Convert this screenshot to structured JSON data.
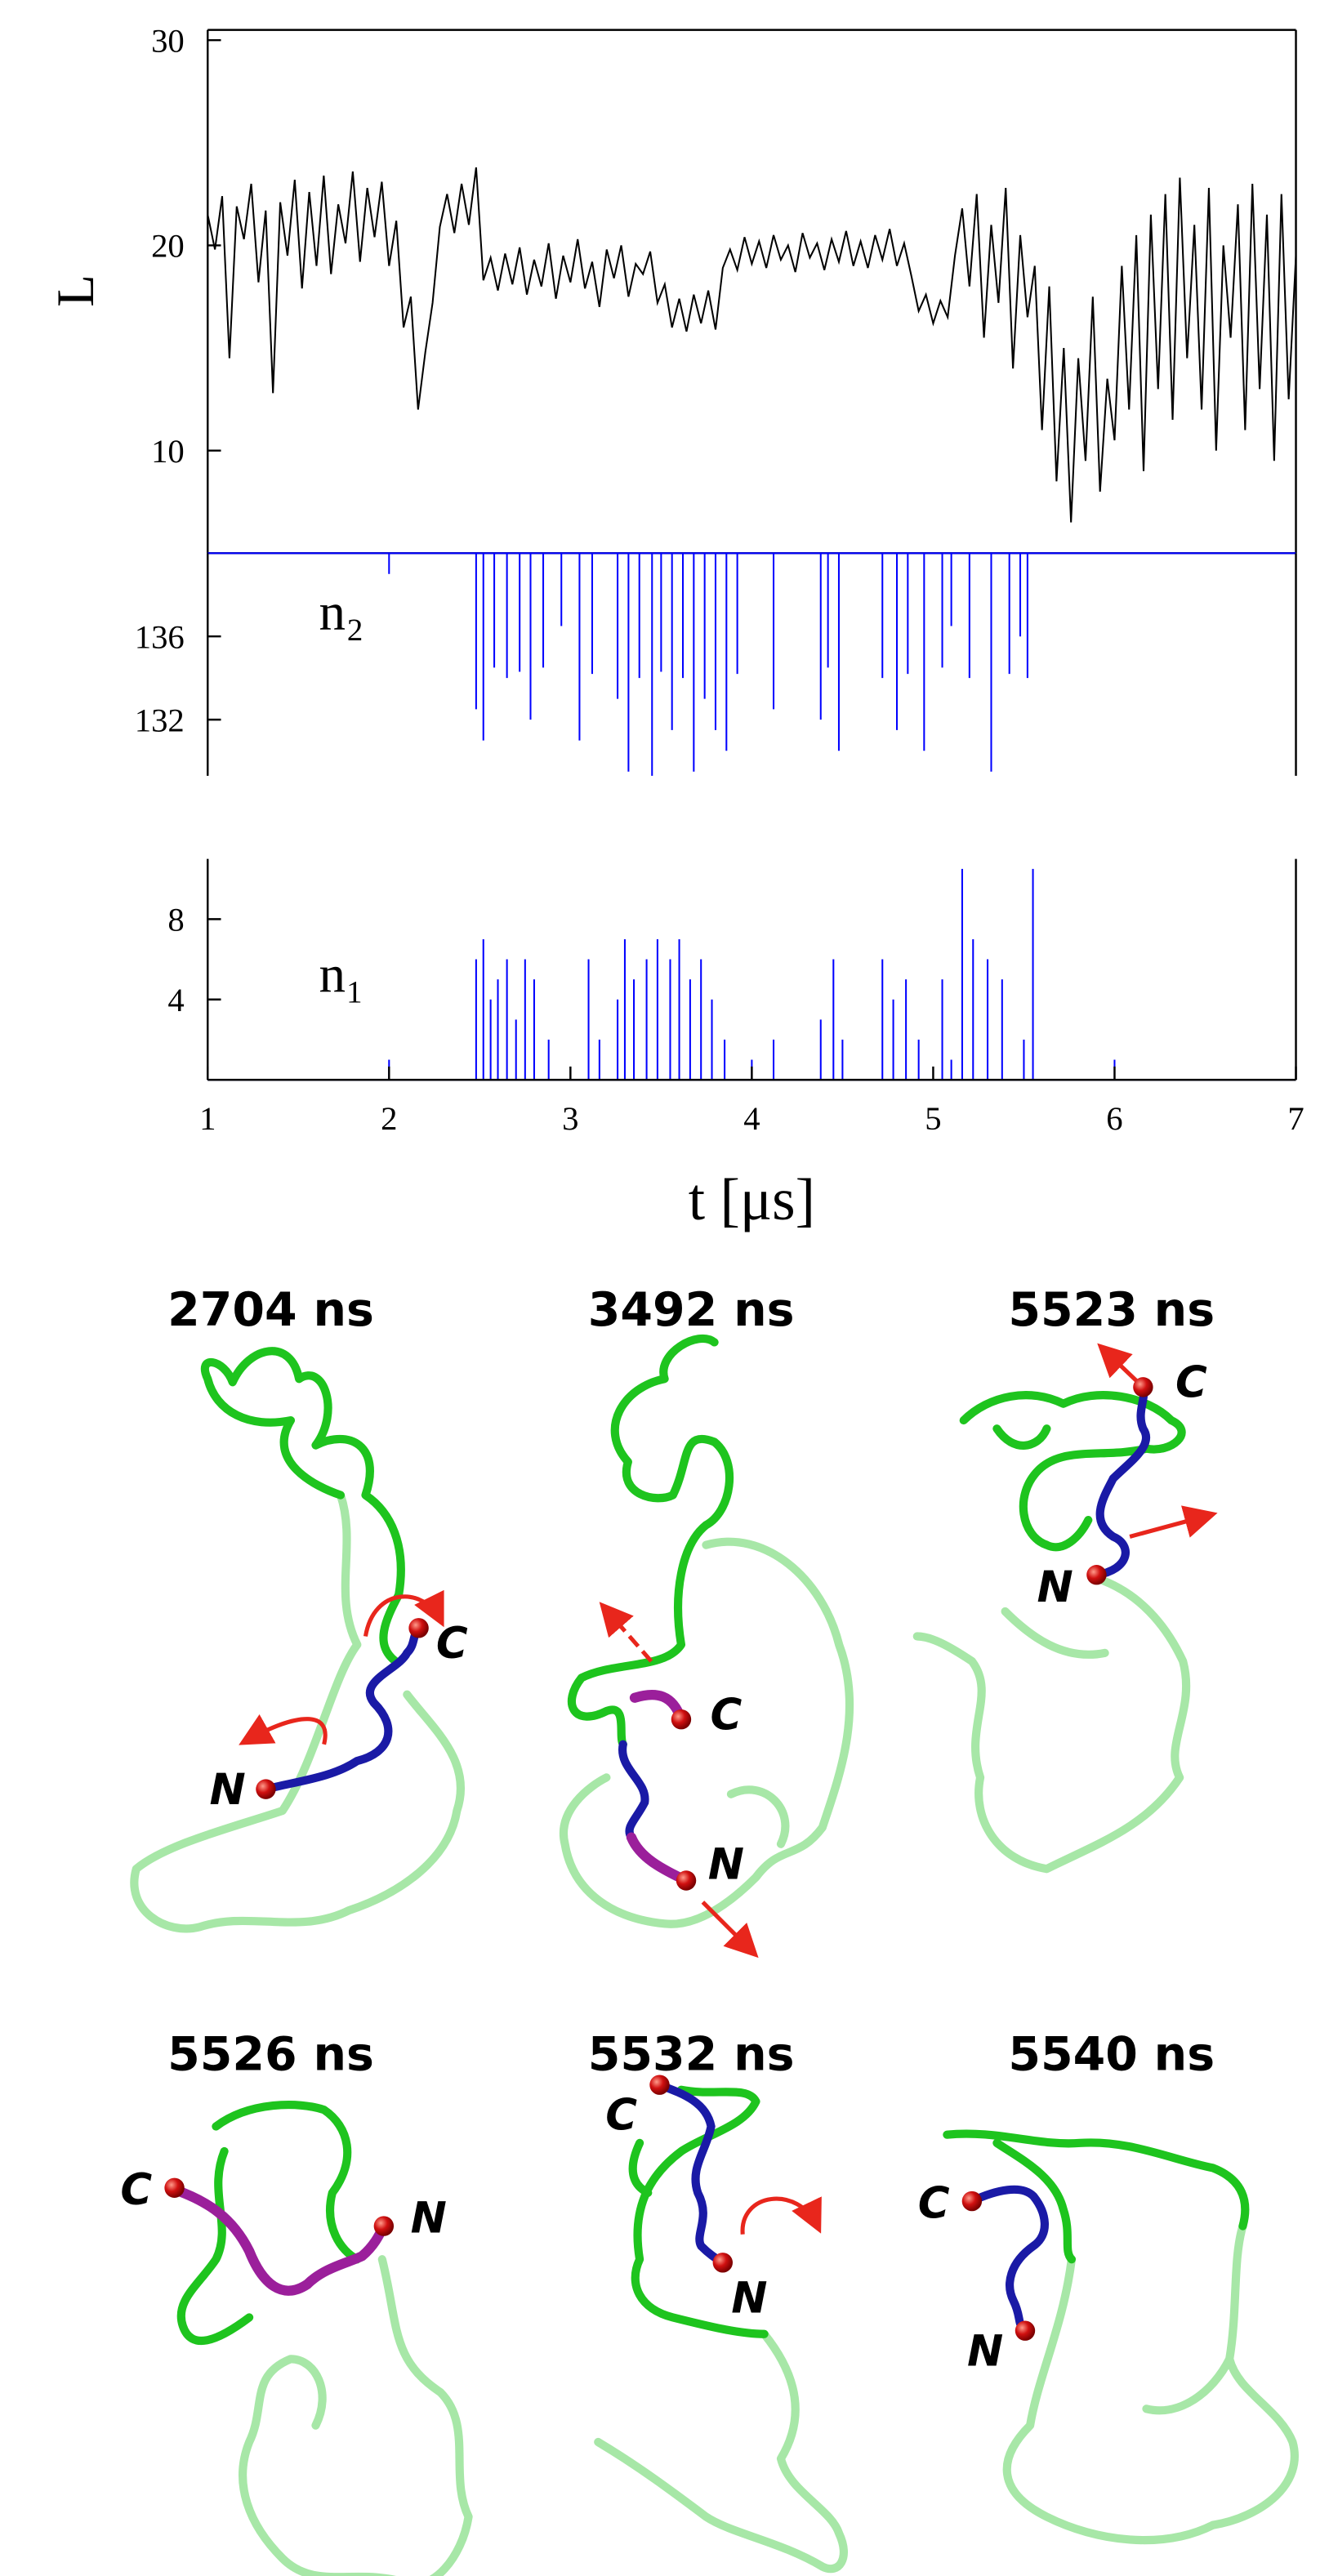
{
  "chart_data": [
    {
      "type": "line",
      "ylabel": "L",
      "color": "#000000",
      "x": [
        1,
        1.04,
        1.08,
        1.12,
        1.16,
        1.2,
        1.24,
        1.28,
        1.32,
        1.36,
        1.4,
        1.44,
        1.48,
        1.52,
        1.56,
        1.6,
        1.64,
        1.68,
        1.72,
        1.76,
        1.8,
        1.84,
        1.88,
        1.92,
        1.96,
        2,
        2.04,
        2.08,
        2.12,
        2.16,
        2.2,
        2.24,
        2.28,
        2.32,
        2.36,
        2.4,
        2.44,
        2.48,
        2.52,
        2.56,
        2.6,
        2.64,
        2.68,
        2.72,
        2.76,
        2.8,
        2.84,
        2.88,
        2.92,
        2.96,
        3,
        3.04,
        3.08,
        3.12,
        3.16,
        3.2,
        3.24,
        3.28,
        3.32,
        3.36,
        3.4,
        3.44,
        3.48,
        3.52,
        3.56,
        3.6,
        3.64,
        3.68,
        3.72,
        3.76,
        3.8,
        3.84,
        3.88,
        3.92,
        3.96,
        4,
        4.04,
        4.08,
        4.12,
        4.16,
        4.2,
        4.24,
        4.28,
        4.32,
        4.36,
        4.4,
        4.44,
        4.48,
        4.52,
        4.56,
        4.6,
        4.64,
        4.68,
        4.72,
        4.76,
        4.8,
        4.84,
        4.88,
        4.92,
        4.96,
        5,
        5.04,
        5.08,
        5.12,
        5.16,
        5.2,
        5.24,
        5.28,
        5.32,
        5.36,
        5.4,
        5.44,
        5.48,
        5.52,
        5.56,
        5.6,
        5.64,
        5.68,
        5.72,
        5.76,
        5.8,
        5.84,
        5.88,
        5.92,
        5.96,
        6,
        6.04,
        6.08,
        6.12,
        6.16,
        6.2,
        6.24,
        6.28,
        6.32,
        6.36,
        6.4,
        6.44,
        6.48,
        6.52,
        6.56,
        6.6,
        6.64,
        6.68,
        6.72,
        6.76,
        6.8,
        6.84,
        6.88,
        6.92,
        6.96,
        7
      ],
      "values": [
        21.5,
        19.8,
        22.4,
        14.5,
        21.9,
        20.3,
        23.0,
        18.2,
        21.7,
        12.8,
        22.1,
        19.5,
        23.2,
        17.9,
        22.6,
        19.0,
        23.4,
        18.6,
        22.0,
        20.1,
        23.6,
        19.2,
        22.8,
        20.4,
        23.1,
        19.0,
        21.2,
        16.0,
        17.5,
        12.0,
        14.8,
        17.2,
        20.9,
        22.5,
        20.6,
        23.0,
        21.0,
        23.8,
        18.3,
        19.4,
        17.8,
        19.6,
        18.1,
        19.9,
        17.6,
        19.3,
        18.0,
        20.1,
        17.4,
        19.5,
        18.2,
        20.3,
        17.9,
        19.2,
        17.0,
        19.8,
        18.4,
        20.0,
        17.5,
        19.1,
        18.6,
        19.7,
        17.2,
        18.1,
        16.0,
        17.4,
        15.8,
        17.6,
        16.2,
        17.8,
        15.9,
        18.9,
        19.8,
        18.8,
        20.4,
        19.1,
        20.2,
        18.9,
        20.5,
        19.3,
        20.0,
        18.7,
        20.6,
        19.4,
        20.1,
        18.8,
        20.3,
        19.2,
        20.7,
        19.0,
        20.2,
        18.9,
        20.5,
        19.3,
        20.8,
        19.0,
        20.1,
        18.5,
        16.8,
        17.6,
        16.2,
        17.3,
        16.5,
        19.5,
        21.8,
        18.0,
        22.5,
        15.5,
        21.0,
        17.2,
        22.8,
        14.0,
        20.5,
        16.5,
        19.0,
        11.0,
        18.0,
        8.5,
        15.0,
        6.5,
        14.5,
        9.5,
        17.5,
        8.0,
        13.5,
        10.5,
        19.0,
        12.0,
        20.5,
        9.0,
        21.5,
        13.0,
        22.5,
        11.5,
        23.3,
        14.5,
        21.0,
        12.0,
        22.8,
        10.0,
        20.0,
        15.5,
        22.0,
        11.0,
        23.0,
        13.0,
        21.5,
        9.5,
        22.5,
        12.5,
        19.5
      ],
      "xlim": [
        1,
        7
      ],
      "ylim": [
        5,
        30.5
      ],
      "yticks": [
        10,
        20,
        30
      ]
    },
    {
      "type": "line",
      "ylabel": "n₂",
      "color": "#0000ff",
      "x": [
        1,
        2,
        2,
        2,
        2.48,
        2.48,
        2.48,
        2.52,
        2.52,
        2.52,
        2.58,
        2.58,
        2.58,
        2.65,
        2.65,
        2.65,
        2.72,
        2.72,
        2.72,
        2.78,
        2.78,
        2.78,
        2.85,
        2.85,
        2.85,
        2.95,
        2.95,
        2.95,
        3.05,
        3.05,
        3.05,
        3.12,
        3.12,
        3.12,
        3.26,
        3.26,
        3.26,
        3.32,
        3.32,
        3.32,
        3.38,
        3.38,
        3.38,
        3.45,
        3.45,
        3.45,
        3.5,
        3.5,
        3.5,
        3.56,
        3.56,
        3.56,
        3.62,
        3.62,
        3.62,
        3.68,
        3.68,
        3.68,
        3.74,
        3.74,
        3.74,
        3.8,
        3.8,
        3.8,
        3.86,
        3.86,
        3.86,
        3.92,
        3.92,
        3.92,
        4.12,
        4.12,
        4.12,
        4.38,
        4.38,
        4.38,
        4.42,
        4.42,
        4.42,
        4.48,
        4.48,
        4.48,
        4.72,
        4.72,
        4.72,
        4.8,
        4.8,
        4.8,
        4.86,
        4.86,
        4.86,
        4.95,
        4.95,
        4.95,
        5.05,
        5.05,
        5.05,
        5.1,
        5.1,
        5.1,
        5.2,
        5.2,
        5.2,
        5.32,
        5.32,
        5.32,
        5.42,
        5.42,
        5.42,
        5.48,
        5.48,
        5.48,
        5.52,
        5.52,
        5.52,
        7
      ],
      "values": [
        140,
        140,
        139,
        140,
        140,
        132.5,
        140,
        140,
        131,
        140,
        140,
        134.5,
        140,
        140,
        134,
        140,
        140,
        134.3,
        140,
        140,
        132,
        140,
        140,
        134.5,
        140,
        140,
        136.5,
        140,
        140,
        131,
        140,
        140,
        134.2,
        140,
        140,
        133,
        140,
        140,
        129.5,
        140,
        140,
        134,
        140,
        140,
        129.3,
        140,
        140,
        134.3,
        140,
        140,
        131.5,
        140,
        140,
        134,
        140,
        140,
        129.5,
        140,
        140,
        133,
        140,
        140,
        131.5,
        140,
        140,
        130.5,
        140,
        140,
        134.2,
        140,
        140,
        132.5,
        140,
        140,
        132,
        140,
        140,
        134.5,
        140,
        140,
        130.5,
        140,
        140,
        134,
        140,
        140,
        131.5,
        140,
        140,
        134.2,
        140,
        140,
        130.5,
        140,
        140,
        134.5,
        140,
        140,
        136.5,
        140,
        140,
        134,
        140,
        140,
        129.5,
        140,
        140,
        134.2,
        140,
        140,
        136,
        140,
        140,
        134,
        140,
        140
      ],
      "xlim": [
        1,
        7
      ],
      "ylim": [
        129.3,
        140
      ],
      "yticks": [
        132,
        136
      ]
    },
    {
      "type": "line",
      "ylabel": "n₁",
      "xlabel": "t  [μs]",
      "color": "#0000ff",
      "x": [
        1,
        2,
        2,
        2,
        2.48,
        2.48,
        2.48,
        2.52,
        2.52,
        2.52,
        2.56,
        2.56,
        2.56,
        2.6,
        2.6,
        2.6,
        2.65,
        2.65,
        2.65,
        2.7,
        2.7,
        2.7,
        2.75,
        2.75,
        2.75,
        2.8,
        2.8,
        2.8,
        2.88,
        2.88,
        2.88,
        3.1,
        3.1,
        3.1,
        3.16,
        3.16,
        3.16,
        3.26,
        3.26,
        3.26,
        3.3,
        3.3,
        3.3,
        3.35,
        3.35,
        3.35,
        3.42,
        3.42,
        3.42,
        3.48,
        3.48,
        3.48,
        3.55,
        3.55,
        3.55,
        3.6,
        3.6,
        3.6,
        3.66,
        3.66,
        3.66,
        3.72,
        3.72,
        3.72,
        3.78,
        3.78,
        3.78,
        3.85,
        3.85,
        3.85,
        4,
        4,
        4,
        4.12,
        4.12,
        4.12,
        4.38,
        4.38,
        4.38,
        4.45,
        4.45,
        4.45,
        4.5,
        4.5,
        4.5,
        4.72,
        4.72,
        4.72,
        4.78,
        4.78,
        4.78,
        4.85,
        4.85,
        4.85,
        4.92,
        4.92,
        4.92,
        5.05,
        5.05,
        5.05,
        5.1,
        5.1,
        5.1,
        5.16,
        5.16,
        5.16,
        5.22,
        5.22,
        5.22,
        5.3,
        5.3,
        5.3,
        5.38,
        5.38,
        5.38,
        5.5,
        5.5,
        5.5,
        5.55,
        5.55,
        5.55,
        6,
        6,
        6,
        7
      ],
      "values": [
        0,
        0,
        1,
        0,
        0,
        6,
        0,
        0,
        7,
        0,
        0,
        4,
        0,
        0,
        5,
        0,
        0,
        6,
        0,
        0,
        3,
        0,
        0,
        6,
        0,
        0,
        5,
        0,
        0,
        2,
        0,
        0,
        6,
        0,
        0,
        2,
        0,
        0,
        4,
        0,
        0,
        7,
        0,
        0,
        5,
        0,
        0,
        6,
        0,
        0,
        7,
        0,
        0,
        6,
        0,
        0,
        7,
        0,
        0,
        5,
        0,
        0,
        6,
        0,
        0,
        4,
        0,
        0,
        2,
        0,
        0,
        1,
        0,
        0,
        2,
        0,
        0,
        3,
        0,
        0,
        6,
        0,
        0,
        2,
        0,
        0,
        6,
        0,
        0,
        4,
        0,
        0,
        5,
        0,
        0,
        2,
        0,
        0,
        5,
        0,
        0,
        1,
        0,
        0,
        10.5,
        0,
        0,
        7,
        0,
        0,
        6,
        0,
        0,
        5,
        0,
        0,
        2,
        0,
        0,
        10.5,
        0,
        0,
        1,
        0,
        0
      ],
      "xlim": [
        1,
        7
      ],
      "ylim": [
        0,
        11
      ],
      "yticks": [
        4,
        8
      ],
      "xticks": [
        1,
        2,
        3,
        4,
        5,
        6,
        7
      ]
    }
  ],
  "snapshots": [
    {
      "title": "2704 ns",
      "n": "N",
      "c": "C"
    },
    {
      "title": "3492 ns",
      "n": "N",
      "c": "C"
    },
    {
      "title": "5523 ns",
      "n": "N",
      "c": "C"
    },
    {
      "title": "5526 ns",
      "n": "N",
      "c": "C"
    },
    {
      "title": "5532 ns",
      "n": "N",
      "c": "C"
    },
    {
      "title": "5540 ns",
      "n": "N",
      "c": "C"
    }
  ]
}
